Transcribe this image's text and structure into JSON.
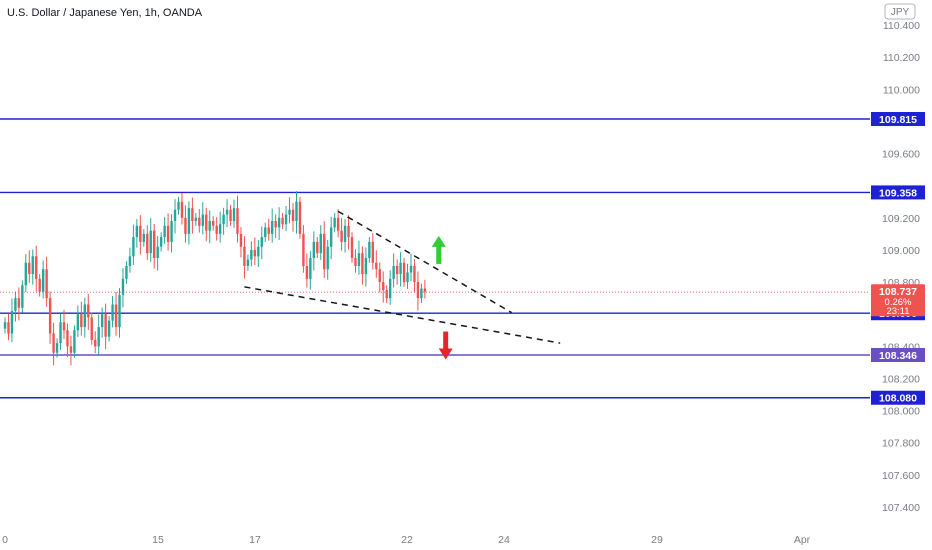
{
  "header": {
    "title": "U.S. Dollar / Japanese Yen, 1h, OANDA"
  },
  "currency_badge": "JPY",
  "colors": {
    "up": "#26a69a",
    "down": "#ef5350",
    "level_line": "#1f22d4",
    "level_label_bg": "#1f22d4",
    "level_purple": "#6a4fc4",
    "current_price_bg": "#ef5350",
    "arrow_up": "#32cd32",
    "arrow_down": "#e8242a",
    "axis_text": "#787b86"
  },
  "chart_data": {
    "type": "candlestick",
    "symbol": "USDJPY",
    "interval": "1h",
    "ylim": [
      107.3,
      110.5
    ],
    "y_ticks": [
      "110.400",
      "110.200",
      "110.000",
      "109.600",
      "109.200",
      "109.000",
      "108.800",
      "108.400",
      "108.200",
      "108.000",
      "107.800",
      "107.600",
      "107.400"
    ],
    "x_ticks": [
      "0",
      "15",
      "17",
      "22",
      "24",
      "29",
      "Apr"
    ],
    "levels": [
      {
        "price": 109.815,
        "label": "109.815",
        "style": "blue"
      },
      {
        "price": 109.358,
        "label": "109.358",
        "style": "blue"
      },
      {
        "price": 108.606,
        "label": "108.606",
        "style": "blue"
      },
      {
        "price": 108.346,
        "label": "108.346",
        "style": "purple"
      },
      {
        "price": 108.08,
        "label": "108.080",
        "style": "blue"
      }
    ],
    "current_price": {
      "price": 108.737,
      "label": "108.737",
      "change": "0.26%",
      "countdown": "23:11"
    },
    "trendlines": [
      {
        "name": "upper-wedge",
        "from": {
          "i": 96,
          "p": 109.24
        },
        "to": {
          "i": 146,
          "p": 108.61
        }
      },
      {
        "name": "lower-wedge",
        "from": {
          "i": 69,
          "p": 108.77
        },
        "to": {
          "i": 160,
          "p": 108.42
        }
      }
    ],
    "annotations": [
      {
        "type": "arrow-up",
        "i": 125,
        "p": 109.0
      },
      {
        "type": "arrow-down",
        "i": 127,
        "p": 108.38
      }
    ],
    "candle_closes": [
      108.55,
      108.48,
      108.62,
      108.7,
      108.64,
      108.78,
      108.92,
      108.85,
      108.96,
      108.82,
      108.74,
      108.88,
      108.7,
      108.48,
      108.36,
      108.42,
      108.55,
      108.5,
      108.4,
      108.36,
      108.5,
      108.6,
      108.52,
      108.66,
      108.58,
      108.44,
      108.4,
      108.52,
      108.6,
      108.46,
      108.56,
      108.66,
      108.52,
      108.72,
      108.82,
      108.9,
      108.96,
      109.08,
      109.15,
      109.05,
      109.1,
      108.98,
      109.12,
      108.95,
      109.02,
      109.08,
      109.15,
      109.05,
      109.18,
      109.25,
      109.3,
      109.2,
      109.1,
      109.26,
      109.18,
      109.2,
      109.15,
      109.22,
      109.12,
      109.18,
      109.15,
      109.1,
      109.16,
      109.22,
      109.25,
      109.18,
      109.26,
      109.1,
      109.02,
      108.9,
      108.94,
      109.0,
      108.96,
      109.02,
      109.08,
      109.14,
      109.1,
      109.18,
      109.14,
      109.2,
      109.16,
      109.22,
      109.25,
      109.18,
      109.3,
      109.1,
      108.9,
      108.82,
      108.95,
      109.05,
      108.98,
      109.1,
      108.88,
      109.02,
      109.14,
      109.2,
      109.12,
      109.05,
      109.15,
      109.08,
      108.95,
      108.9,
      108.98,
      108.85,
      108.95,
      109.05,
      108.92,
      108.88,
      108.8,
      108.75,
      108.7,
      108.82,
      108.9,
      108.85,
      108.92,
      108.8,
      108.86,
      108.9,
      108.8,
      108.7,
      108.76,
      108.74
    ]
  },
  "axis_unit_note": ""
}
